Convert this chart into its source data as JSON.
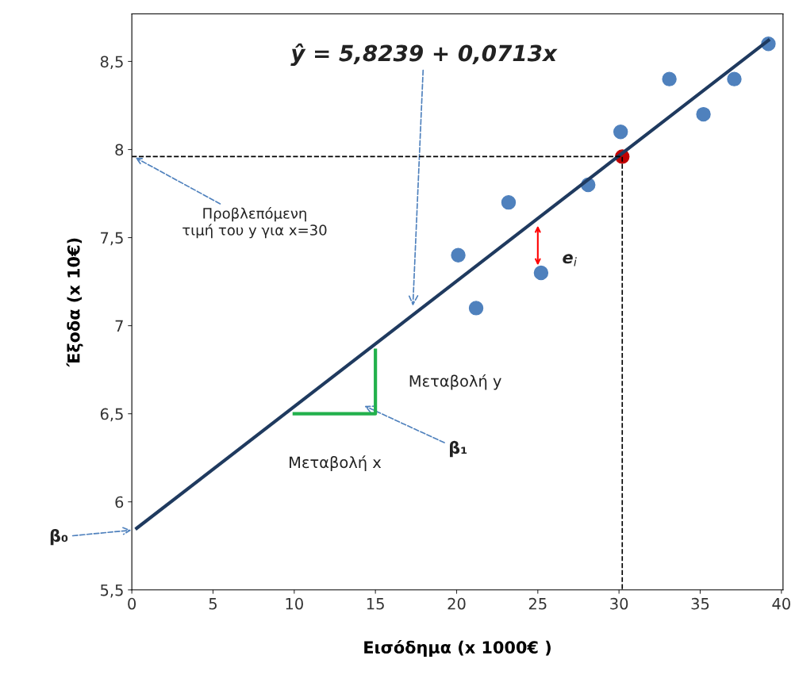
{
  "chart_data": {
    "type": "scatter",
    "xlabel": "Εισόδημα (x 1000€ )",
    "ylabel": "Έξοδα (x 10€)",
    "xlim": [
      0,
      40.1
    ],
    "ylim": [
      5.5,
      8.77
    ],
    "xticks": [
      0,
      5,
      10,
      15,
      20,
      25,
      30,
      35,
      40
    ],
    "yticks": [
      {
        "value": 5.5,
        "label": "5,5"
      },
      6,
      {
        "value": 6.5,
        "label": "6,5"
      },
      7,
      {
        "value": 7.5,
        "label": "7,5"
      },
      8,
      {
        "value": 8.5,
        "label": "8,5"
      }
    ],
    "grid": false,
    "marker": "circle",
    "series": [
      {
        "color": "#4f81bd",
        "x": [
          20.1,
          21.2,
          23.2,
          25.2,
          28.1,
          30.1,
          33.1,
          35.2,
          37.1,
          39.2
        ],
        "values": [
          7.4,
          7.1,
          7.7,
          7.3,
          7.8,
          8.1,
          8.4,
          8.2,
          8.4,
          8.6
        ]
      },
      {
        "type": "line",
        "color": "#1f3a5f",
        "x": [
          0.3,
          39.2
        ],
        "values": [
          5.85,
          8.62
        ],
        "marker": "none",
        "line_style": "solid"
      },
      {
        "type": "line",
        "color": "#000000",
        "x": [
          0,
          30.2,
          30.2
        ],
        "values": [
          7.96,
          7.96,
          5.5
        ],
        "marker": "none",
        "line_style": "dashed"
      },
      {
        "type": "line",
        "color": "#22b14c",
        "x": [
          10,
          15,
          15
        ],
        "values": [
          6.5,
          6.5,
          6.86
        ],
        "marker": "none",
        "line_style": "solid"
      },
      {
        "type": "scatter",
        "color": "#c00000",
        "x": [
          30.2
        ],
        "values": [
          7.96
        ]
      }
    ],
    "annotations": [
      {
        "text": "ŷ = 5,8239 + 0,0713x",
        "x": 17.3,
        "y": 7.1
      },
      {
        "text": "Προβλεπόμενη\nτιμή του y για x=30",
        "x": 0.1,
        "y": 7.96
      },
      "e$_{i}$",
      {
        "text": "Μεταβολή y",
        "x": 15,
        "y": 6.68
      },
      {
        "text": "Μεταβολή x",
        "x": 12.5,
        "y": 6.5
      },
      "β₁",
      "β₀"
    ]
  }
}
